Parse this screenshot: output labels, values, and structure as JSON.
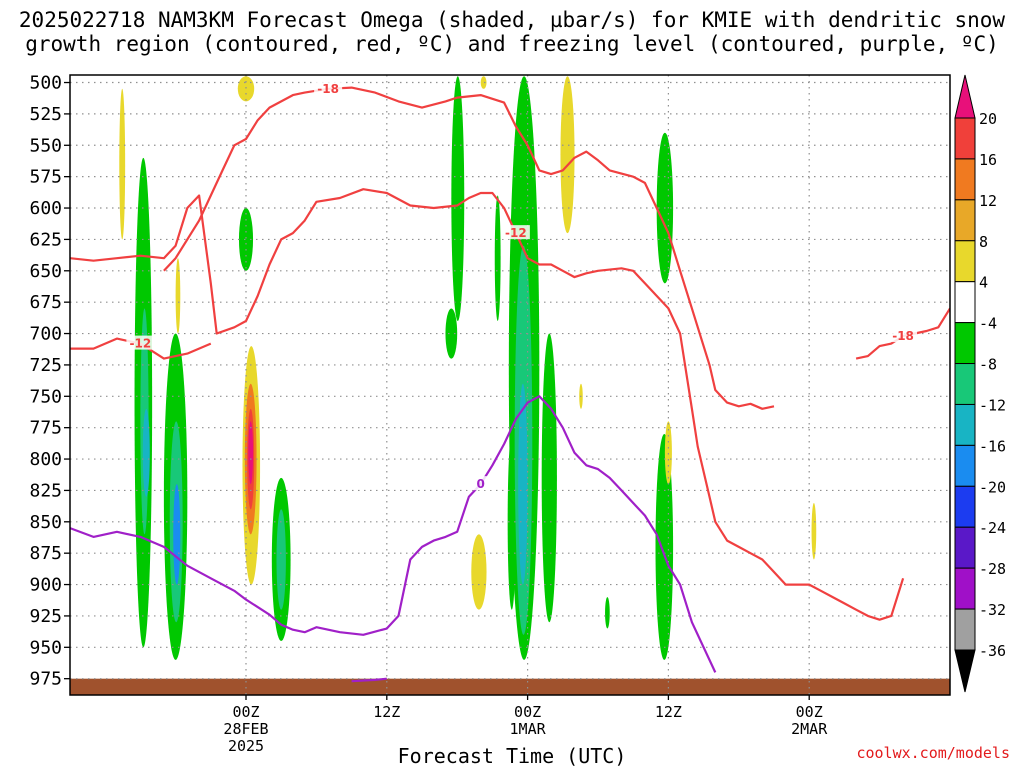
{
  "title_line1": "2025022718 NAM3KM Forecast Omega (shaded, µbar/s) for KMIE with dendritic snow",
  "title_line2": "growth region (contoured, red, ºC) and freezing level (contoured, purple, ºC)",
  "credit": "coolwx.com/models",
  "chart_data": {
    "type": "heatmap",
    "title": "2025022718 NAM3KM Forecast Omega (shaded, µbar/s) for KMIE with dendritic snow growth region (contoured, red, ºC) and freezing level (contoured, purple, ºC)",
    "xlabel": "Forecast Time (UTC)",
    "ylabel": "",
    "x_range_hours": [
      -15,
      60
    ],
    "x_ticks": [
      {
        "hour": 0,
        "label": "00Z",
        "label2": "28FEB",
        "label3": "2025"
      },
      {
        "hour": 12,
        "label": "12Z"
      },
      {
        "hour": 24,
        "label": "00Z",
        "label2": "1MAR"
      },
      {
        "hour": 36,
        "label": "12Z"
      },
      {
        "hour": 48,
        "label": "00Z",
        "label2": "2MAR"
      }
    ],
    "y_range_hPa": [
      988,
      494
    ],
    "y_ticks": [
      500,
      525,
      550,
      575,
      600,
      625,
      650,
      675,
      700,
      725,
      750,
      775,
      800,
      825,
      850,
      875,
      900,
      925,
      950,
      975
    ],
    "grid": true,
    "colorbar": {
      "units": "µbar/s",
      "labels": [
        "20",
        "16",
        "12",
        "8",
        "4",
        "-4",
        "-8",
        "-12",
        "-16",
        "-20",
        "-24",
        "-28",
        "-32",
        "-36"
      ],
      "bins": [
        {
          "low": 20,
          "high": null,
          "color": "#e8107a"
        },
        {
          "low": 16,
          "high": 20,
          "color": "#f0403a"
        },
        {
          "low": 12,
          "high": 16,
          "color": "#f07a20"
        },
        {
          "low": 8,
          "high": 12,
          "color": "#e8a828"
        },
        {
          "low": 4,
          "high": 8,
          "color": "#e8d82c"
        },
        {
          "low": -4,
          "high": 4,
          "color": "#ffffff"
        },
        {
          "low": -8,
          "high": -4,
          "color": "#00c800"
        },
        {
          "low": -12,
          "high": -8,
          "color": "#18c878"
        },
        {
          "low": -16,
          "high": -12,
          "color": "#18b4c4"
        },
        {
          "low": -20,
          "high": -16,
          "color": "#1a8cf0"
        },
        {
          "low": -24,
          "high": -20,
          "color": "#1c3cf0"
        },
        {
          "low": -28,
          "high": -24,
          "color": "#5a18c8"
        },
        {
          "low": -32,
          "high": -28,
          "color": "#a010c8"
        },
        {
          "low": -36,
          "high": -32,
          "color": "#a0a0a0"
        },
        {
          "low": null,
          "high": -36,
          "color": "#000000"
        }
      ]
    },
    "colors": {
      "dgz": "#f04040",
      "freezing": "#a020c8",
      "terrain": "#a0522d",
      "grid": "#909090"
    },
    "contours": [
      {
        "name": "-18",
        "color": "dgz",
        "label": "-18",
        "points": [
          [
            -7,
            650
          ],
          [
            -6,
            640
          ],
          [
            -4,
            610
          ],
          [
            -3,
            590
          ],
          [
            -2,
            570
          ],
          [
            -1,
            550
          ],
          [
            0,
            545
          ],
          [
            1,
            530
          ],
          [
            2,
            520
          ],
          [
            3,
            515
          ],
          [
            4,
            510
          ],
          [
            5,
            508
          ],
          [
            7,
            505
          ],
          [
            9,
            504
          ],
          [
            11,
            508
          ],
          [
            13,
            515
          ],
          [
            15,
            520
          ],
          [
            17,
            515
          ],
          [
            18,
            512
          ],
          [
            20,
            510
          ],
          [
            22,
            516
          ],
          [
            23,
            535
          ],
          [
            24,
            550
          ],
          [
            25,
            570
          ],
          [
            26,
            573
          ],
          [
            27,
            570
          ],
          [
            28,
            560
          ],
          [
            29,
            555
          ],
          [
            30,
            562
          ],
          [
            31,
            570
          ],
          [
            33,
            575
          ],
          [
            34,
            580
          ],
          [
            35,
            600
          ],
          [
            36,
            620
          ],
          [
            37,
            650
          ],
          [
            38,
            680
          ],
          [
            39,
            710
          ],
          [
            39.5,
            725
          ],
          [
            40,
            745
          ],
          [
            41,
            755
          ],
          [
            42,
            758
          ],
          [
            43,
            756
          ],
          [
            44,
            760
          ],
          [
            45,
            758
          ]
        ]
      },
      {
        "name": "-18b",
        "color": "dgz",
        "label": "-18",
        "points": [
          [
            52,
            720
          ],
          [
            53,
            718
          ],
          [
            54,
            710
          ],
          [
            55,
            708
          ],
          [
            56,
            702
          ],
          [
            57,
            700
          ],
          [
            58,
            698
          ],
          [
            59,
            695
          ],
          [
            60,
            680
          ]
        ]
      },
      {
        "name": "-12",
        "color": "dgz",
        "label": "-12",
        "points": [
          [
            -15,
            640
          ],
          [
            -13,
            642
          ],
          [
            -11,
            640
          ],
          [
            -9,
            638
          ],
          [
            -7,
            640
          ],
          [
            -6,
            630
          ],
          [
            -5,
            600
          ],
          [
            -4,
            590
          ],
          [
            -3,
            660
          ],
          [
            -2.5,
            700
          ],
          [
            -1,
            695
          ],
          [
            0,
            690
          ],
          [
            1,
            670
          ],
          [
            2,
            645
          ],
          [
            3,
            625
          ],
          [
            4,
            620
          ],
          [
            5,
            610
          ],
          [
            6,
            595
          ],
          [
            8,
            592
          ],
          [
            10,
            585
          ],
          [
            12,
            588
          ],
          [
            14,
            598
          ],
          [
            16,
            600
          ],
          [
            18,
            598
          ],
          [
            19,
            592
          ],
          [
            20,
            588
          ],
          [
            21,
            588
          ],
          [
            22,
            600
          ],
          [
            23,
            620
          ],
          [
            24,
            640
          ],
          [
            25,
            645
          ],
          [
            26,
            645
          ],
          [
            27,
            650
          ],
          [
            28,
            655
          ],
          [
            29,
            652
          ],
          [
            30,
            650
          ],
          [
            32,
            648
          ],
          [
            33,
            650
          ],
          [
            34,
            660
          ],
          [
            35,
            670
          ],
          [
            36,
            680
          ],
          [
            37,
            700
          ],
          [
            37.5,
            730
          ],
          [
            38,
            760
          ],
          [
            38.5,
            790
          ],
          [
            39,
            810
          ],
          [
            39.5,
            830
          ],
          [
            40,
            850
          ],
          [
            41,
            865
          ],
          [
            42,
            870
          ],
          [
            43,
            875
          ],
          [
            44,
            880
          ],
          [
            45,
            890
          ],
          [
            46,
            900
          ],
          [
            47,
            900
          ],
          [
            48,
            900
          ],
          [
            49,
            905
          ],
          [
            50,
            910
          ],
          [
            51,
            915
          ],
          [
            52,
            920
          ],
          [
            53,
            925
          ],
          [
            54,
            928
          ],
          [
            55,
            925
          ],
          [
            56,
            895
          ]
        ]
      },
      {
        "name": "-12b",
        "color": "dgz",
        "label": "-12",
        "points": [
          [
            -15,
            712
          ],
          [
            -13,
            712
          ],
          [
            -11,
            704
          ],
          [
            -9,
            708
          ],
          [
            -7,
            720
          ],
          [
            -5,
            716
          ],
          [
            -3,
            708
          ]
        ]
      },
      {
        "name": "0",
        "color": "freezing",
        "label": "0",
        "points": [
          [
            -15,
            855
          ],
          [
            -13,
            862
          ],
          [
            -11,
            858
          ],
          [
            -9,
            862
          ],
          [
            -7,
            870
          ],
          [
            -5,
            885
          ],
          [
            -3,
            895
          ],
          [
            -1,
            905
          ],
          [
            0,
            912
          ],
          [
            1,
            918
          ],
          [
            2,
            924
          ],
          [
            3,
            932
          ],
          [
            4,
            936
          ],
          [
            5,
            938
          ],
          [
            6,
            934
          ],
          [
            8,
            938
          ],
          [
            10,
            940
          ],
          [
            12,
            935
          ],
          [
            13,
            925
          ],
          [
            14,
            880
          ],
          [
            15,
            870
          ],
          [
            16,
            865
          ],
          [
            17,
            862
          ],
          [
            18,
            858
          ],
          [
            19,
            830
          ],
          [
            20,
            820
          ],
          [
            21,
            805
          ],
          [
            22,
            788
          ],
          [
            23,
            768
          ],
          [
            24,
            755
          ],
          [
            25,
            750
          ],
          [
            26,
            760
          ],
          [
            27,
            775
          ],
          [
            28,
            795
          ],
          [
            29,
            805
          ],
          [
            30,
            808
          ],
          [
            31,
            815
          ],
          [
            32,
            825
          ],
          [
            33,
            835
          ],
          [
            34,
            845
          ],
          [
            35,
            860
          ],
          [
            36,
            885
          ],
          [
            37,
            900
          ],
          [
            38,
            930
          ],
          [
            39,
            950
          ],
          [
            40,
            970
          ]
        ]
      },
      {
        "name": "0b",
        "color": "freezing",
        "label": "",
        "points": [
          [
            9,
            977
          ],
          [
            11,
            976
          ],
          [
            12,
            975
          ]
        ]
      }
    ],
    "omega_cells": [
      {
        "hour_range": [
          -10.8,
          -10.3
        ],
        "p_range": [
          505,
          625
        ],
        "omega": 6
      },
      {
        "hour_range": [
          -9.5,
          -8.0
        ],
        "p_range": [
          560,
          950
        ],
        "omega": -6
      },
      {
        "hour_range": [
          -9.0,
          -8.3
        ],
        "p_range": [
          680,
          860
        ],
        "omega": -10
      },
      {
        "hour_range": [
          -8.8,
          -8.2
        ],
        "p_range": [
          760,
          830
        ],
        "omega": -14
      },
      {
        "hour_range": [
          -6.0,
          -5.6
        ],
        "p_range": [
          640,
          700
        ],
        "omega": 6
      },
      {
        "hour_range": [
          -7.0,
          -5.0
        ],
        "p_range": [
          700,
          960
        ],
        "omega": -6
      },
      {
        "hour_range": [
          -6.5,
          -5.4
        ],
        "p_range": [
          770,
          930
        ],
        "omega": -12
      },
      {
        "hour_range": [
          -6.2,
          -5.6
        ],
        "p_range": [
          820,
          900
        ],
        "omega": -18
      },
      {
        "hour_range": [
          -0.6,
          0.6
        ],
        "p_range": [
          600,
          650
        ],
        "omega": -6
      },
      {
        "hour_range": [
          -0.3,
          1.2
        ],
        "p_range": [
          710,
          900
        ],
        "omega": 6
      },
      {
        "hour_range": [
          -0.1,
          0.9
        ],
        "p_range": [
          740,
          860
        ],
        "omega": 12
      },
      {
        "hour_range": [
          0.1,
          0.7
        ],
        "p_range": [
          760,
          840
        ],
        "omega": 18
      },
      {
        "hour_range": [
          0.2,
          0.6
        ],
        "p_range": [
          770,
          820
        ],
        "omega": 24
      },
      {
        "hour_range": [
          -0.7,
          0.7
        ],
        "p_range": [
          495,
          515
        ],
        "omega": 6
      },
      {
        "hour_range": [
          2.2,
          3.8
        ],
        "p_range": [
          815,
          945
        ],
        "omega": -6
      },
      {
        "hour_range": [
          2.6,
          3.4
        ],
        "p_range": [
          840,
          920
        ],
        "omega": -10
      },
      {
        "hour_range": [
          17.5,
          18.6
        ],
        "p_range": [
          495,
          690
        ],
        "omega": -6
      },
      {
        "hour_range": [
          17.0,
          18.0
        ],
        "p_range": [
          680,
          720
        ],
        "omega": -6
      },
      {
        "hour_range": [
          21.2,
          21.7
        ],
        "p_range": [
          590,
          690
        ],
        "omega": -6
      },
      {
        "hour_range": [
          19.2,
          20.5
        ],
        "p_range": [
          860,
          920
        ],
        "omega": 6
      },
      {
        "hour_range": [
          22.3,
          23.0
        ],
        "p_range": [
          780,
          920
        ],
        "omega": -6
      },
      {
        "hour_range": [
          22.4,
          25.0
        ],
        "p_range": [
          495,
          960
        ],
        "omega": -6
      },
      {
        "hour_range": [
          22.9,
          24.4
        ],
        "p_range": [
          630,
          940
        ],
        "omega": -10
      },
      {
        "hour_range": [
          23.2,
          24.0
        ],
        "p_range": [
          740,
          900
        ],
        "omega": -13
      },
      {
        "hour_range": [
          25.2,
          26.5
        ],
        "p_range": [
          700,
          930
        ],
        "omega": -6
      },
      {
        "hour_range": [
          20.0,
          20.5
        ],
        "p_range": [
          495,
          505
        ],
        "omega": 6
      },
      {
        "hour_range": [
          26.8,
          28.0
        ],
        "p_range": [
          495,
          620
        ],
        "omega": 6
      },
      {
        "hour_range": [
          28.4,
          28.7
        ],
        "p_range": [
          740,
          760
        ],
        "omega": 6
      },
      {
        "hour_range": [
          30.6,
          31.0
        ],
        "p_range": [
          910,
          935
        ],
        "omega": -6
      },
      {
        "hour_range": [
          35.0,
          36.4
        ],
        "p_range": [
          540,
          660
        ],
        "omega": -6
      },
      {
        "hour_range": [
          34.9,
          36.4
        ],
        "p_range": [
          780,
          960
        ],
        "omega": -6
      },
      {
        "hour_range": [
          35.7,
          36.3
        ],
        "p_range": [
          770,
          820
        ],
        "omega": 6
      },
      {
        "hour_range": [
          48.2,
          48.6
        ],
        "p_range": [
          835,
          880
        ],
        "omega": 6
      },
      {
        "hour_range": [
          -15,
          60
        ],
        "p_range": [
          975,
          988
        ],
        "omega": null,
        "terrain": true
      }
    ]
  }
}
